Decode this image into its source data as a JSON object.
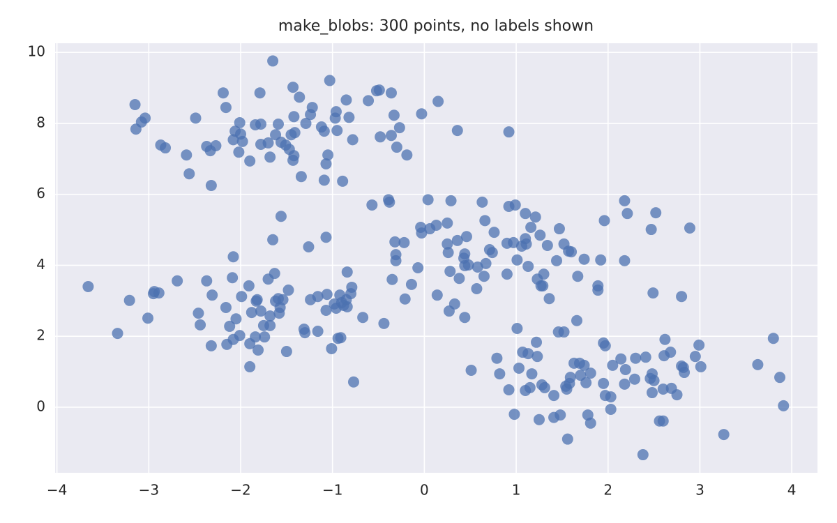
{
  "chart_data": {
    "type": "scatter",
    "title": "make_blobs: 300 points, no labels shown",
    "color": "#4c72b0",
    "grid": true,
    "xlim": [
      -4.02,
      4.28
    ],
    "ylim": [
      -1.85,
      10.26
    ],
    "xticks": [
      {
        "value": -4,
        "label": "−4"
      },
      {
        "value": -3,
        "label": "−3"
      },
      {
        "value": -2,
        "label": "−2"
      },
      {
        "value": -1,
        "label": "−1"
      },
      0,
      1,
      2,
      3,
      4
    ],
    "yticks": [
      0,
      2,
      4,
      6,
      8,
      10
    ],
    "series": [
      {
        "x": [
          -3.15,
          -3.14,
          -3.08,
          -3.04,
          -2.87,
          -2.82,
          -2.59,
          -2.56,
          -2.49,
          -2.37,
          -2.33,
          -2.32,
          -2.27,
          -2.19,
          -2.16,
          -2.08,
          -2.06,
          -2.01,
          -2.0,
          -2.02,
          -1.98,
          -1.9,
          -1.84,
          -1.79,
          -1.78,
          -1.78,
          -1.7,
          -1.68,
          -1.65,
          -1.62,
          -1.59,
          -1.56,
          -1.51,
          -1.47,
          -1.45,
          -1.43,
          -1.42,
          -1.41,
          -1.42,
          -1.43,
          -1.36,
          -1.34,
          -1.29,
          -1.24,
          -1.22,
          -1.12,
          -1.09,
          -1.05,
          -1.07,
          -1.09,
          -1.03,
          -0.97,
          -0.96,
          -0.95,
          -0.89,
          -0.85,
          -0.82,
          -0.78,
          -0.61,
          -0.52,
          -0.49,
          -0.48,
          -0.36,
          -0.36,
          -0.33,
          -0.3,
          -0.27,
          -0.19,
          -0.03,
          0.15,
          0.36,
          0.92,
          -3.66,
          -3.34,
          -3.21,
          -3.01,
          -2.95,
          -2.94,
          -2.89,
          -2.69,
          -2.46,
          -2.44,
          -2.37,
          -2.31,
          -2.32,
          -2.16,
          -2.15,
          -2.12,
          -2.09,
          -2.08,
          -2.08,
          -2.05,
          -2.01,
          -1.99,
          -1.9,
          -1.9,
          -1.91,
          -1.88,
          -1.84,
          -1.83,
          -1.82,
          -1.81,
          -1.78,
          -1.75,
          -1.74,
          -1.7,
          -1.68,
          -1.68,
          -1.65,
          -1.63,
          -1.62,
          -1.59,
          -1.57,
          -1.58,
          -1.56,
          -1.54,
          -1.5,
          -1.48,
          -1.26,
          -1.24,
          -1.31,
          -1.3,
          -1.16,
          -1.16,
          -1.07,
          -1.07,
          -1.06,
          -1.01,
          -0.98,
          -0.96,
          -0.94,
          -0.92,
          -0.91,
          -0.9,
          -0.88,
          -0.85,
          -0.84,
          -0.84,
          -0.8,
          -0.79,
          -0.77,
          -0.67,
          -0.44,
          -0.57,
          -0.39,
          -0.38,
          -0.35,
          -0.32,
          -0.31,
          -0.31,
          -0.22,
          -0.21,
          -0.14,
          -0.07,
          -0.04,
          -0.03,
          0.04,
          0.06,
          0.13,
          0.14,
          0.25,
          0.25,
          0.26,
          0.27,
          0.29,
          0.28,
          0.33,
          0.36,
          0.38,
          0.43,
          0.44,
          0.44,
          0.44,
          0.46,
          0.48,
          0.57,
          0.58,
          0.63,
          0.66,
          0.65,
          0.67,
          0.71,
          0.74,
          0.76,
          0.9,
          0.92,
          0.9,
          0.97,
          0.99,
          1.01,
          1.06,
          1.1,
          1.1,
          1.11,
          1.13,
          1.16,
          1.21,
          1.23,
          1.26,
          1.27,
          1.3,
          1.29,
          1.34,
          1.36,
          1.44,
          1.47,
          1.52,
          1.57,
          1.6,
          1.67,
          1.74,
          1.89,
          1.89,
          1.92,
          1.96,
          2.18,
          2.18,
          2.21,
          2.47,
          2.52,
          2.49,
          2.8,
          2.89,
          0.51,
          0.79,
          0.82,
          0.92,
          0.98,
          1.01,
          1.03,
          1.07,
          1.1,
          1.13,
          1.15,
          1.17,
          1.22,
          1.23,
          1.25,
          1.28,
          1.31,
          1.41,
          1.41,
          1.46,
          1.48,
          1.52,
          1.54,
          1.56,
          1.55,
          1.58,
          1.59,
          1.63,
          1.66,
          1.69,
          1.7,
          1.74,
          1.76,
          1.78,
          1.81,
          1.81,
          1.95,
          1.97,
          1.95,
          1.97,
          2.03,
          2.03,
          2.05,
          2.14,
          2.18,
          2.19,
          2.29,
          2.3,
          2.38,
          2.41,
          2.46,
          2.48,
          2.48,
          2.5,
          2.56,
          2.6,
          2.6,
          2.61,
          2.62,
          2.68,
          2.69,
          2.75,
          2.8,
          2.82,
          2.83,
          2.95,
          2.99,
          3.01,
          3.26,
          3.63,
          3.8,
          3.87,
          3.91
        ],
        "values": [
          8.53,
          7.84,
          8.04,
          8.15,
          7.39,
          7.31,
          7.11,
          6.58,
          8.15,
          7.35,
          7.23,
          6.25,
          7.37,
          8.86,
          8.45,
          7.54,
          7.78,
          8.02,
          7.7,
          7.19,
          7.49,
          6.94,
          7.96,
          8.86,
          7.98,
          7.41,
          7.45,
          7.05,
          9.76,
          7.68,
          7.98,
          7.47,
          7.39,
          7.27,
          7.68,
          9.02,
          8.19,
          7.74,
          7.09,
          6.96,
          8.74,
          6.5,
          8.0,
          8.25,
          8.45,
          7.9,
          7.78,
          7.11,
          6.86,
          6.4,
          9.21,
          8.15,
          8.33,
          7.8,
          6.37,
          8.66,
          8.17,
          7.54,
          8.64,
          8.92,
          8.94,
          7.62,
          8.86,
          7.66,
          8.23,
          7.33,
          7.88,
          7.11,
          8.27,
          8.62,
          7.8,
          7.76,
          3.4,
          2.08,
          3.01,
          2.51,
          3.2,
          3.26,
          3.22,
          3.56,
          2.65,
          2.32,
          3.56,
          3.16,
          1.73,
          2.81,
          1.77,
          2.28,
          3.65,
          4.24,
          1.91,
          2.49,
          2.02,
          3.12,
          1.79,
          1.14,
          3.42,
          2.67,
          1.98,
          2.99,
          3.03,
          1.61,
          2.71,
          2.3,
          1.98,
          3.61,
          2.3,
          2.57,
          4.72,
          3.77,
          2.99,
          3.06,
          2.81,
          2.65,
          5.38,
          3.03,
          1.57,
          3.3,
          4.52,
          3.03,
          2.2,
          2.1,
          3.12,
          2.14,
          4.79,
          2.73,
          3.18,
          1.65,
          2.91,
          2.79,
          1.94,
          3.16,
          1.96,
          2.95,
          2.87,
          3.03,
          2.83,
          3.81,
          3.2,
          3.38,
          0.71,
          2.53,
          2.36,
          5.7,
          5.85,
          5.78,
          3.6,
          4.66,
          4.3,
          4.13,
          4.64,
          3.05,
          3.46,
          3.93,
          5.07,
          4.91,
          5.85,
          5.03,
          5.13,
          3.16,
          5.19,
          4.6,
          4.36,
          2.71,
          5.82,
          3.83,
          2.91,
          4.7,
          3.63,
          4.2,
          4.32,
          2.53,
          3.99,
          4.81,
          4.01,
          3.34,
          3.95,
          5.78,
          5.26,
          3.69,
          4.05,
          4.44,
          4.36,
          4.93,
          4.62,
          5.66,
          3.75,
          4.64,
          5.7,
          4.15,
          4.54,
          4.75,
          5.46,
          4.6,
          3.97,
          5.07,
          5.36,
          3.61,
          4.85,
          3.42,
          3.75,
          3.42,
          4.56,
          3.06,
          4.13,
          5.03,
          4.6,
          4.4,
          4.38,
          3.69,
          4.17,
          3.42,
          3.3,
          4.15,
          5.26,
          4.13,
          5.82,
          5.46,
          5.01,
          5.48,
          3.22,
          3.12,
          5.05,
          1.04,
          1.38,
          0.94,
          0.49,
          -0.2,
          2.22,
          1.1,
          1.55,
          0.47,
          1.51,
          0.55,
          0.94,
          1.83,
          1.43,
          -0.35,
          0.63,
          0.55,
          -0.29,
          0.33,
          2.12,
          -0.22,
          2.12,
          0.59,
          -0.9,
          0.51,
          0.67,
          0.84,
          1.24,
          2.44,
          1.24,
          0.9,
          1.18,
          0.69,
          -0.22,
          -0.45,
          0.96,
          1.81,
          1.73,
          0.67,
          0.33,
          0.29,
          -0.06,
          1.18,
          1.36,
          0.65,
          1.06,
          0.79,
          1.38,
          -1.34,
          1.41,
          0.81,
          0.94,
          0.41,
          0.75,
          -0.39,
          -0.39,
          0.51,
          1.45,
          1.91,
          1.55,
          0.53,
          0.35,
          1.16,
          1.12,
          0.98,
          1.43,
          1.75,
          1.14,
          -0.77,
          1.2,
          1.94,
          0.84,
          0.04
        ]
      }
    ]
  }
}
